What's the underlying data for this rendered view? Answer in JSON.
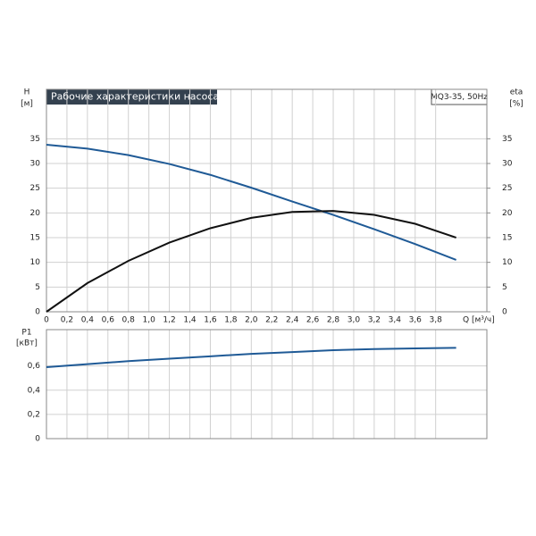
{
  "chart_data": [
    {
      "type": "line",
      "title": "Рабочие характеристики насоса",
      "subtitle": "MQ3-35, 50Hz",
      "y_label": "H",
      "y_unit": "[м]",
      "y2_label": "eta",
      "y2_unit": "[%]",
      "x_label": "Q [м³/ч]",
      "x": [
        0,
        0.4,
        0.8,
        1.2,
        1.6,
        2.0,
        2.4,
        2.8,
        3.2,
        3.6,
        4.0
      ],
      "series": [
        {
          "color": "#1f5a96",
          "values": [
            33.8,
            33.0,
            31.7,
            29.9,
            27.7,
            25.1,
            22.3,
            19.6,
            16.7,
            13.7,
            10.5
          ]
        },
        {
          "color": "#111111",
          "axis": "y2",
          "values": [
            0,
            5.8,
            10.3,
            14.0,
            16.9,
            19.0,
            20.2,
            20.4,
            19.6,
            17.8,
            15.0
          ]
        }
      ],
      "xlim": [
        0,
        4.3
      ],
      "xticks": [
        0,
        {
          "value": 0.2,
          "label": "0,2"
        },
        {
          "value": 0.4,
          "label": "0,4"
        },
        {
          "value": 0.6,
          "label": "0,6"
        },
        {
          "value": 0.8,
          "label": "0,8"
        },
        {
          "value": 1.0,
          "label": "1,0"
        },
        {
          "value": 1.2,
          "label": "1,2"
        },
        {
          "value": 1.4,
          "label": "1,4"
        },
        {
          "value": 1.6,
          "label": "1,6"
        },
        {
          "value": 1.8,
          "label": "1,8"
        },
        {
          "value": 2.0,
          "label": "2,0"
        },
        {
          "value": 2.2,
          "label": "2,2"
        },
        {
          "value": 2.4,
          "label": "2,4"
        },
        {
          "value": 2.6,
          "label": "2,6"
        },
        {
          "value": 2.8,
          "label": "2,8"
        },
        {
          "value": 3.0,
          "label": "3,0"
        },
        {
          "value": 3.2,
          "label": "3,2"
        },
        {
          "value": 3.4,
          "label": "3,4"
        },
        {
          "value": 3.6,
          "label": "3,6"
        },
        {
          "value": 3.8,
          "label": "3,8"
        }
      ],
      "ylim": [
        0,
        45
      ],
      "yticks": [
        0,
        5,
        10,
        15,
        20,
        25,
        30,
        35
      ],
      "y2lim": [
        0,
        45
      ],
      "y2ticks": [
        0,
        5,
        10,
        15,
        20,
        25,
        30,
        35
      ],
      "grid": true
    },
    {
      "type": "line",
      "y_label": "P1",
      "y_unit": "[кВт]",
      "x": [
        0,
        0.4,
        0.8,
        1.2,
        1.6,
        2.0,
        2.4,
        2.8,
        3.2,
        3.6,
        4.0
      ],
      "series": [
        {
          "color": "#1f5a96",
          "values": [
            0.59,
            0.615,
            0.64,
            0.66,
            0.68,
            0.7,
            0.715,
            0.73,
            0.74,
            0.745,
            0.75
          ]
        }
      ],
      "xlim": [
        0,
        4.3
      ],
      "xticks": [
        0,
        0.2,
        0.4,
        0.6,
        0.8,
        1.0,
        1.2,
        1.4,
        1.6,
        1.8,
        2.0,
        2.2,
        2.4,
        2.6,
        2.8,
        3.0,
        3.2,
        3.4,
        3.6,
        3.8
      ],
      "ylim": [
        0,
        0.9
      ],
      "yticks": [
        0,
        {
          "value": 0.2,
          "label": "0,2"
        },
        {
          "value": 0.4,
          "label": "0,4"
        },
        {
          "value": 0.6,
          "label": "0,6"
        }
      ],
      "grid": true
    }
  ]
}
